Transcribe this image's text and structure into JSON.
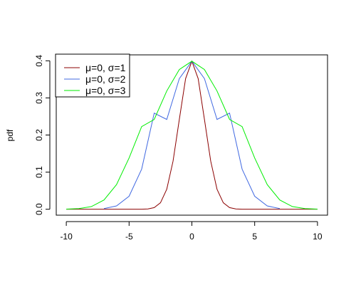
{
  "chart_data": {
    "type": "line",
    "title": "",
    "xlabel": "",
    "ylabel": "pdf",
    "xlim": [
      -10.8,
      10.8
    ],
    "ylim": [
      -0.016,
      0.416
    ],
    "x_ticks": [
      -10,
      -5,
      0,
      5,
      10
    ],
    "x_tick_labels": [
      "-10",
      "-5",
      "0",
      "5",
      "10"
    ],
    "y_ticks": [
      0.0,
      0.1,
      0.2,
      0.3,
      0.4
    ],
    "y_tick_labels": [
      "0.0",
      "0.1",
      "0.2",
      "0.3",
      "0.4"
    ],
    "grid": false,
    "legend_position": "top-left",
    "series": [
      {
        "name": "μ=0, σ=1",
        "color": "#8b0000",
        "x": [
          -10,
          -4,
          -3.5,
          -3,
          -2.5,
          -2,
          -1.5,
          -1,
          -0.5,
          0,
          0.5,
          1,
          1.5,
          2,
          2.5,
          3,
          3.5,
          4,
          10
        ],
        "y": [
          0.0,
          0.0001,
          0.0009,
          0.0044,
          0.0175,
          0.054,
          0.1295,
          0.242,
          0.3521,
          0.3989,
          0.3521,
          0.242,
          0.1295,
          0.054,
          0.0175,
          0.0044,
          0.0009,
          0.0001,
          0.0
        ]
      },
      {
        "name": "μ=0, σ=2",
        "color": "#4169e1",
        "x": [
          -7,
          -6,
          -5,
          -4,
          -3,
          -2,
          -1,
          0,
          1,
          2,
          3,
          4,
          5,
          6,
          7
        ],
        "y": [
          0.0017,
          0.0089,
          0.0351,
          0.108,
          0.259,
          0.242,
          0.352,
          0.3989,
          0.352,
          0.242,
          0.259,
          0.108,
          0.0351,
          0.0089,
          0.0017
        ]
      },
      {
        "name": "μ=0, σ=3",
        "color": "#00ee00",
        "x": [
          -10,
          -9,
          -8,
          -7,
          -6,
          -5,
          -4,
          -3,
          -2,
          -1,
          0,
          1,
          2,
          3,
          4,
          5,
          6,
          7,
          8,
          9,
          10
        ],
        "y": [
          0.0003,
          0.0017,
          0.0072,
          0.0248,
          0.0664,
          0.1382,
          0.2227,
          0.242,
          0.3187,
          0.3765,
          0.3989,
          0.3765,
          0.3187,
          0.242,
          0.2227,
          0.1382,
          0.0664,
          0.0248,
          0.0072,
          0.0017,
          0.0003
        ]
      }
    ]
  }
}
